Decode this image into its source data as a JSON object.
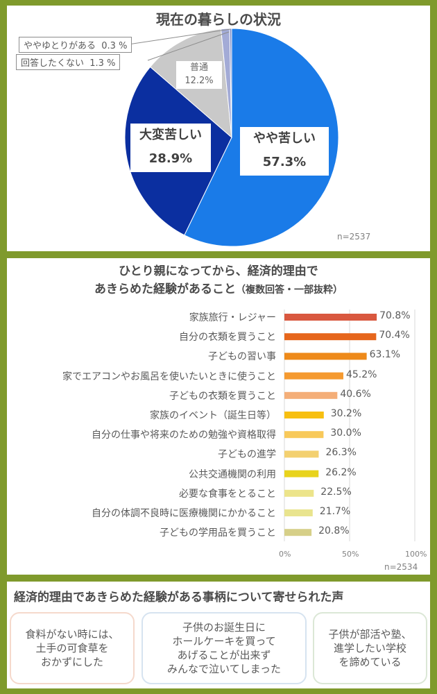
{
  "chart_data": [
    {
      "type": "pie",
      "title": "現在の暮らしの状況",
      "n_label": "n=2537",
      "slices": [
        {
          "label": "やや苦しい",
          "value": 57.3,
          "value_label": "57.3%",
          "color": "#1a7be8"
        },
        {
          "label": "大変苦しい",
          "value": 28.9,
          "value_label": "28.9%",
          "color": "#0b2fa0"
        },
        {
          "label": "普通",
          "value": 12.2,
          "value_label": "12.2%",
          "color": "#c9c9c9"
        },
        {
          "label": "回答したくない",
          "value": 1.3,
          "value_label": "1.3 %",
          "color": "#a3abd6"
        },
        {
          "label": "ややゆとりがある",
          "value": 0.3,
          "value_label": "0.3 %",
          "color": "#7d8fc8"
        }
      ]
    },
    {
      "type": "bar",
      "orientation": "horizontal",
      "title_line1": "ひとり親になってから、経済的理由で",
      "title_line2": "あきらめた経験があること",
      "title_note": "（複数回答・一部抜粋）",
      "n_label": "n=2534",
      "xlim": [
        0,
        100
      ],
      "ticks": [
        "0%",
        "50%",
        "100%"
      ],
      "categories": [
        "家族旅行・レジャー",
        "自分の衣類を買うこと",
        "子どもの習い事",
        "家でエアコンやお風呂を使いたいときに使うこと",
        "子どもの衣類を買うこと",
        "家族のイベント（誕生日等）",
        "自分の仕事や将来のための勉強や資格取得",
        "子どもの進学",
        "公共交通機関の利用",
        "必要な食事をとること",
        "自分の体調不良時に医療機関にかかること",
        "子どもの学用品を買うこと"
      ],
      "values": [
        70.8,
        70.4,
        63.1,
        45.2,
        40.6,
        30.2,
        30.0,
        26.3,
        26.2,
        22.5,
        21.7,
        20.8
      ],
      "value_labels": [
        "70.8%",
        "70.4%",
        "63.1%",
        "45.2%",
        "40.6%",
        "30.2%",
        "30.0%",
        "26.3%",
        "26.2%",
        "22.5%",
        "21.7%",
        "20.8%"
      ],
      "colors": [
        "#d9583f",
        "#e6661c",
        "#ee8a1a",
        "#f59a30",
        "#f4ae78",
        "#f7bf10",
        "#f8c95a",
        "#f3d070",
        "#e8d31c",
        "#ece48a",
        "#e9e48e",
        "#d6cf88"
      ]
    }
  ],
  "voices": {
    "title": "経済的理由であきらめた経験がある事柄について寄せられた声",
    "items": [
      {
        "text": "食料がない時には、\n土手の可食草を\nおかずにした",
        "color": "#f5d9cc"
      },
      {
        "text": "子供のお誕生日に\nホールケーキを買って\nあげることが出来ず\nみんなで泣いてしまった",
        "color": "#d6e3f0"
      },
      {
        "text": "子供が部活や塾、\n進学したい学校\nを諦めている",
        "color": "#dbe7d6"
      }
    ]
  }
}
